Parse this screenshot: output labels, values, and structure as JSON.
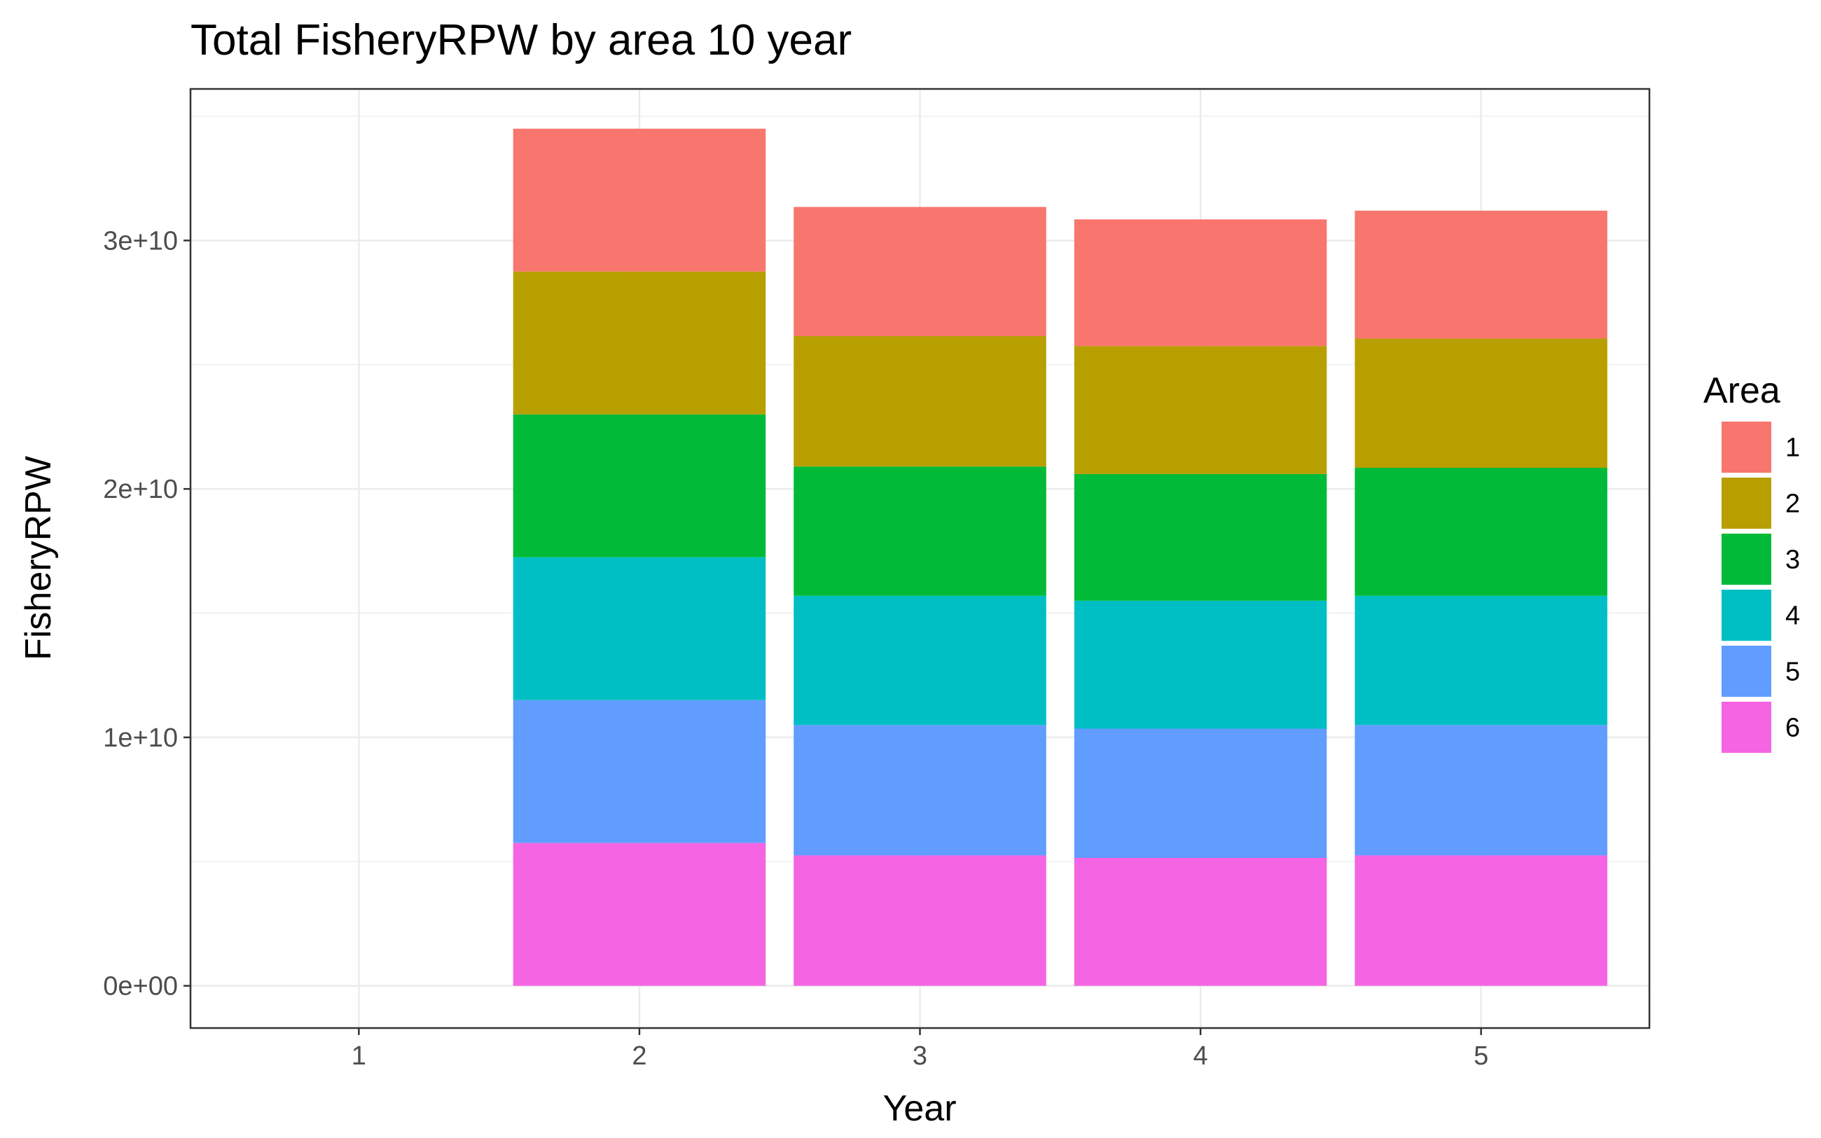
{
  "chart_data": {
    "type": "bar",
    "stacked": true,
    "title": "Total FisheryRPW by area 10 year",
    "xlabel": "Year",
    "ylabel": "FisheryRPW",
    "categories": [
      "1",
      "2",
      "3",
      "4",
      "5"
    ],
    "y_ticks": [
      0,
      10000000000,
      20000000000,
      30000000000
    ],
    "y_tick_labels": [
      "0e+00",
      "1e+10",
      "2e+10",
      "3e+10"
    ],
    "ylim": [
      -1700000000,
      36100000000
    ],
    "grid": true,
    "legend": {
      "title": "Area",
      "position": "right"
    },
    "series": [
      {
        "name": "1",
        "color": "#F8766D",
        "values": [
          0,
          5750000000,
          5200000000,
          5100000000,
          5150000000
        ]
      },
      {
        "name": "2",
        "color": "#B79F00",
        "values": [
          0,
          5750000000,
          5250000000,
          5150000000,
          5200000000
        ]
      },
      {
        "name": "3",
        "color": "#00BA38",
        "values": [
          0,
          5750000000,
          5200000000,
          5100000000,
          5150000000
        ]
      },
      {
        "name": "4",
        "color": "#00BFC4",
        "values": [
          0,
          5750000000,
          5200000000,
          5150000000,
          5200000000
        ]
      },
      {
        "name": "5",
        "color": "#619CFF",
        "values": [
          0,
          5750000000,
          5250000000,
          5200000000,
          5250000000
        ]
      },
      {
        "name": "6",
        "color": "#F564E3",
        "values": [
          0,
          5750000000,
          5250000000,
          5150000000,
          5250000000
        ]
      }
    ]
  }
}
